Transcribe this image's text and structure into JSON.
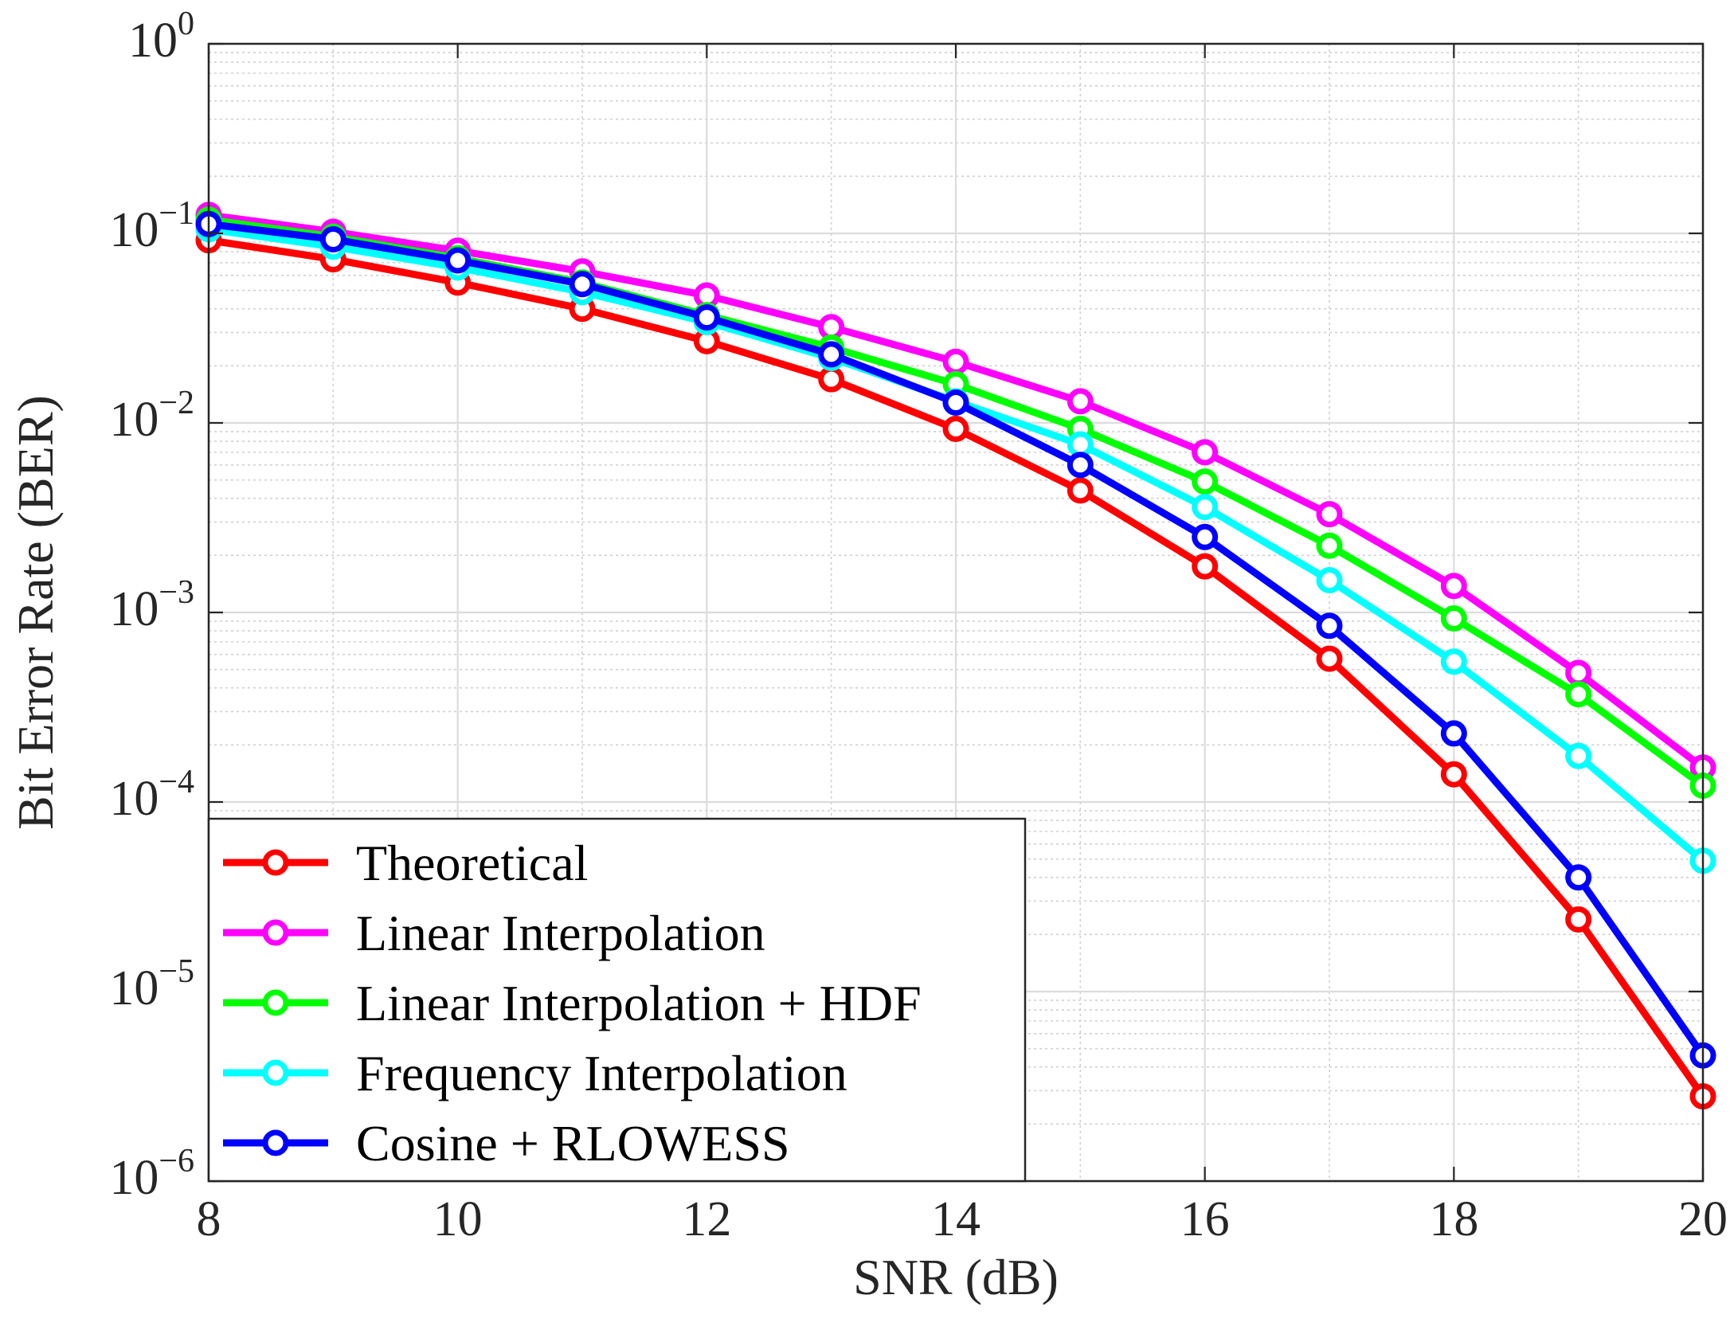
{
  "chart_data": {
    "type": "line",
    "title": "",
    "xlabel": "SNR (dB)",
    "ylabel": "Bit Error Rate (BER)",
    "x": [
      8,
      9,
      10,
      11,
      12,
      13,
      14,
      15,
      16,
      17,
      18,
      19,
      20
    ],
    "xlim": [
      8,
      20
    ],
    "xticks": [
      8,
      10,
      12,
      14,
      16,
      18,
      20
    ],
    "yscale": "log",
    "ylim": [
      1e-06,
      1
    ],
    "ytick_labels": [
      {
        "base": "10",
        "exp": "0"
      },
      {
        "base": "10",
        "exp": "−1"
      },
      {
        "base": "10",
        "exp": "−2"
      },
      {
        "base": "10",
        "exp": "−3"
      },
      {
        "base": "10",
        "exp": "−4"
      },
      {
        "base": "10",
        "exp": "−5"
      },
      {
        "base": "10",
        "exp": "−6"
      }
    ],
    "grid": true,
    "minor_grid": true,
    "legend_position": "bottom-left",
    "series": [
      {
        "name": "Theoretical",
        "color": "#ff0000",
        "marker": "circle",
        "values": [
          0.092,
          0.073,
          0.055,
          0.04,
          0.027,
          0.017,
          0.0093,
          0.0044,
          0.00175,
          0.00057,
          0.00014,
          2.4e-05,
          2.8e-06
        ]
      },
      {
        "name": "Linear Interpolation",
        "color": "#ff00ff",
        "marker": "circle",
        "values": [
          0.125,
          0.102,
          0.081,
          0.063,
          0.047,
          0.032,
          0.021,
          0.013,
          0.007,
          0.0033,
          0.00138,
          0.00048,
          0.000152
        ]
      },
      {
        "name": "Linear Interpolation + HDF",
        "color": "#00ff00",
        "marker": "circle",
        "values": [
          0.118,
          0.096,
          0.074,
          0.055,
          0.037,
          0.025,
          0.016,
          0.0093,
          0.0049,
          0.00225,
          0.00093,
          0.00037,
          0.000122
        ]
      },
      {
        "name": "Frequency Interpolation",
        "color": "#00ffff",
        "marker": "circle",
        "values": [
          0.105,
          0.085,
          0.066,
          0.049,
          0.034,
          0.022,
          0.013,
          0.0077,
          0.0036,
          0.00148,
          0.00055,
          0.000175,
          4.9e-05
        ]
      },
      {
        "name": "Cosine + RLOWESS",
        "color": "#0000ff",
        "marker": "circle",
        "values": [
          0.112,
          0.093,
          0.072,
          0.054,
          0.036,
          0.023,
          0.0128,
          0.006,
          0.0025,
          0.00085,
          0.00023,
          4e-05,
          4.6e-06
        ]
      }
    ]
  }
}
